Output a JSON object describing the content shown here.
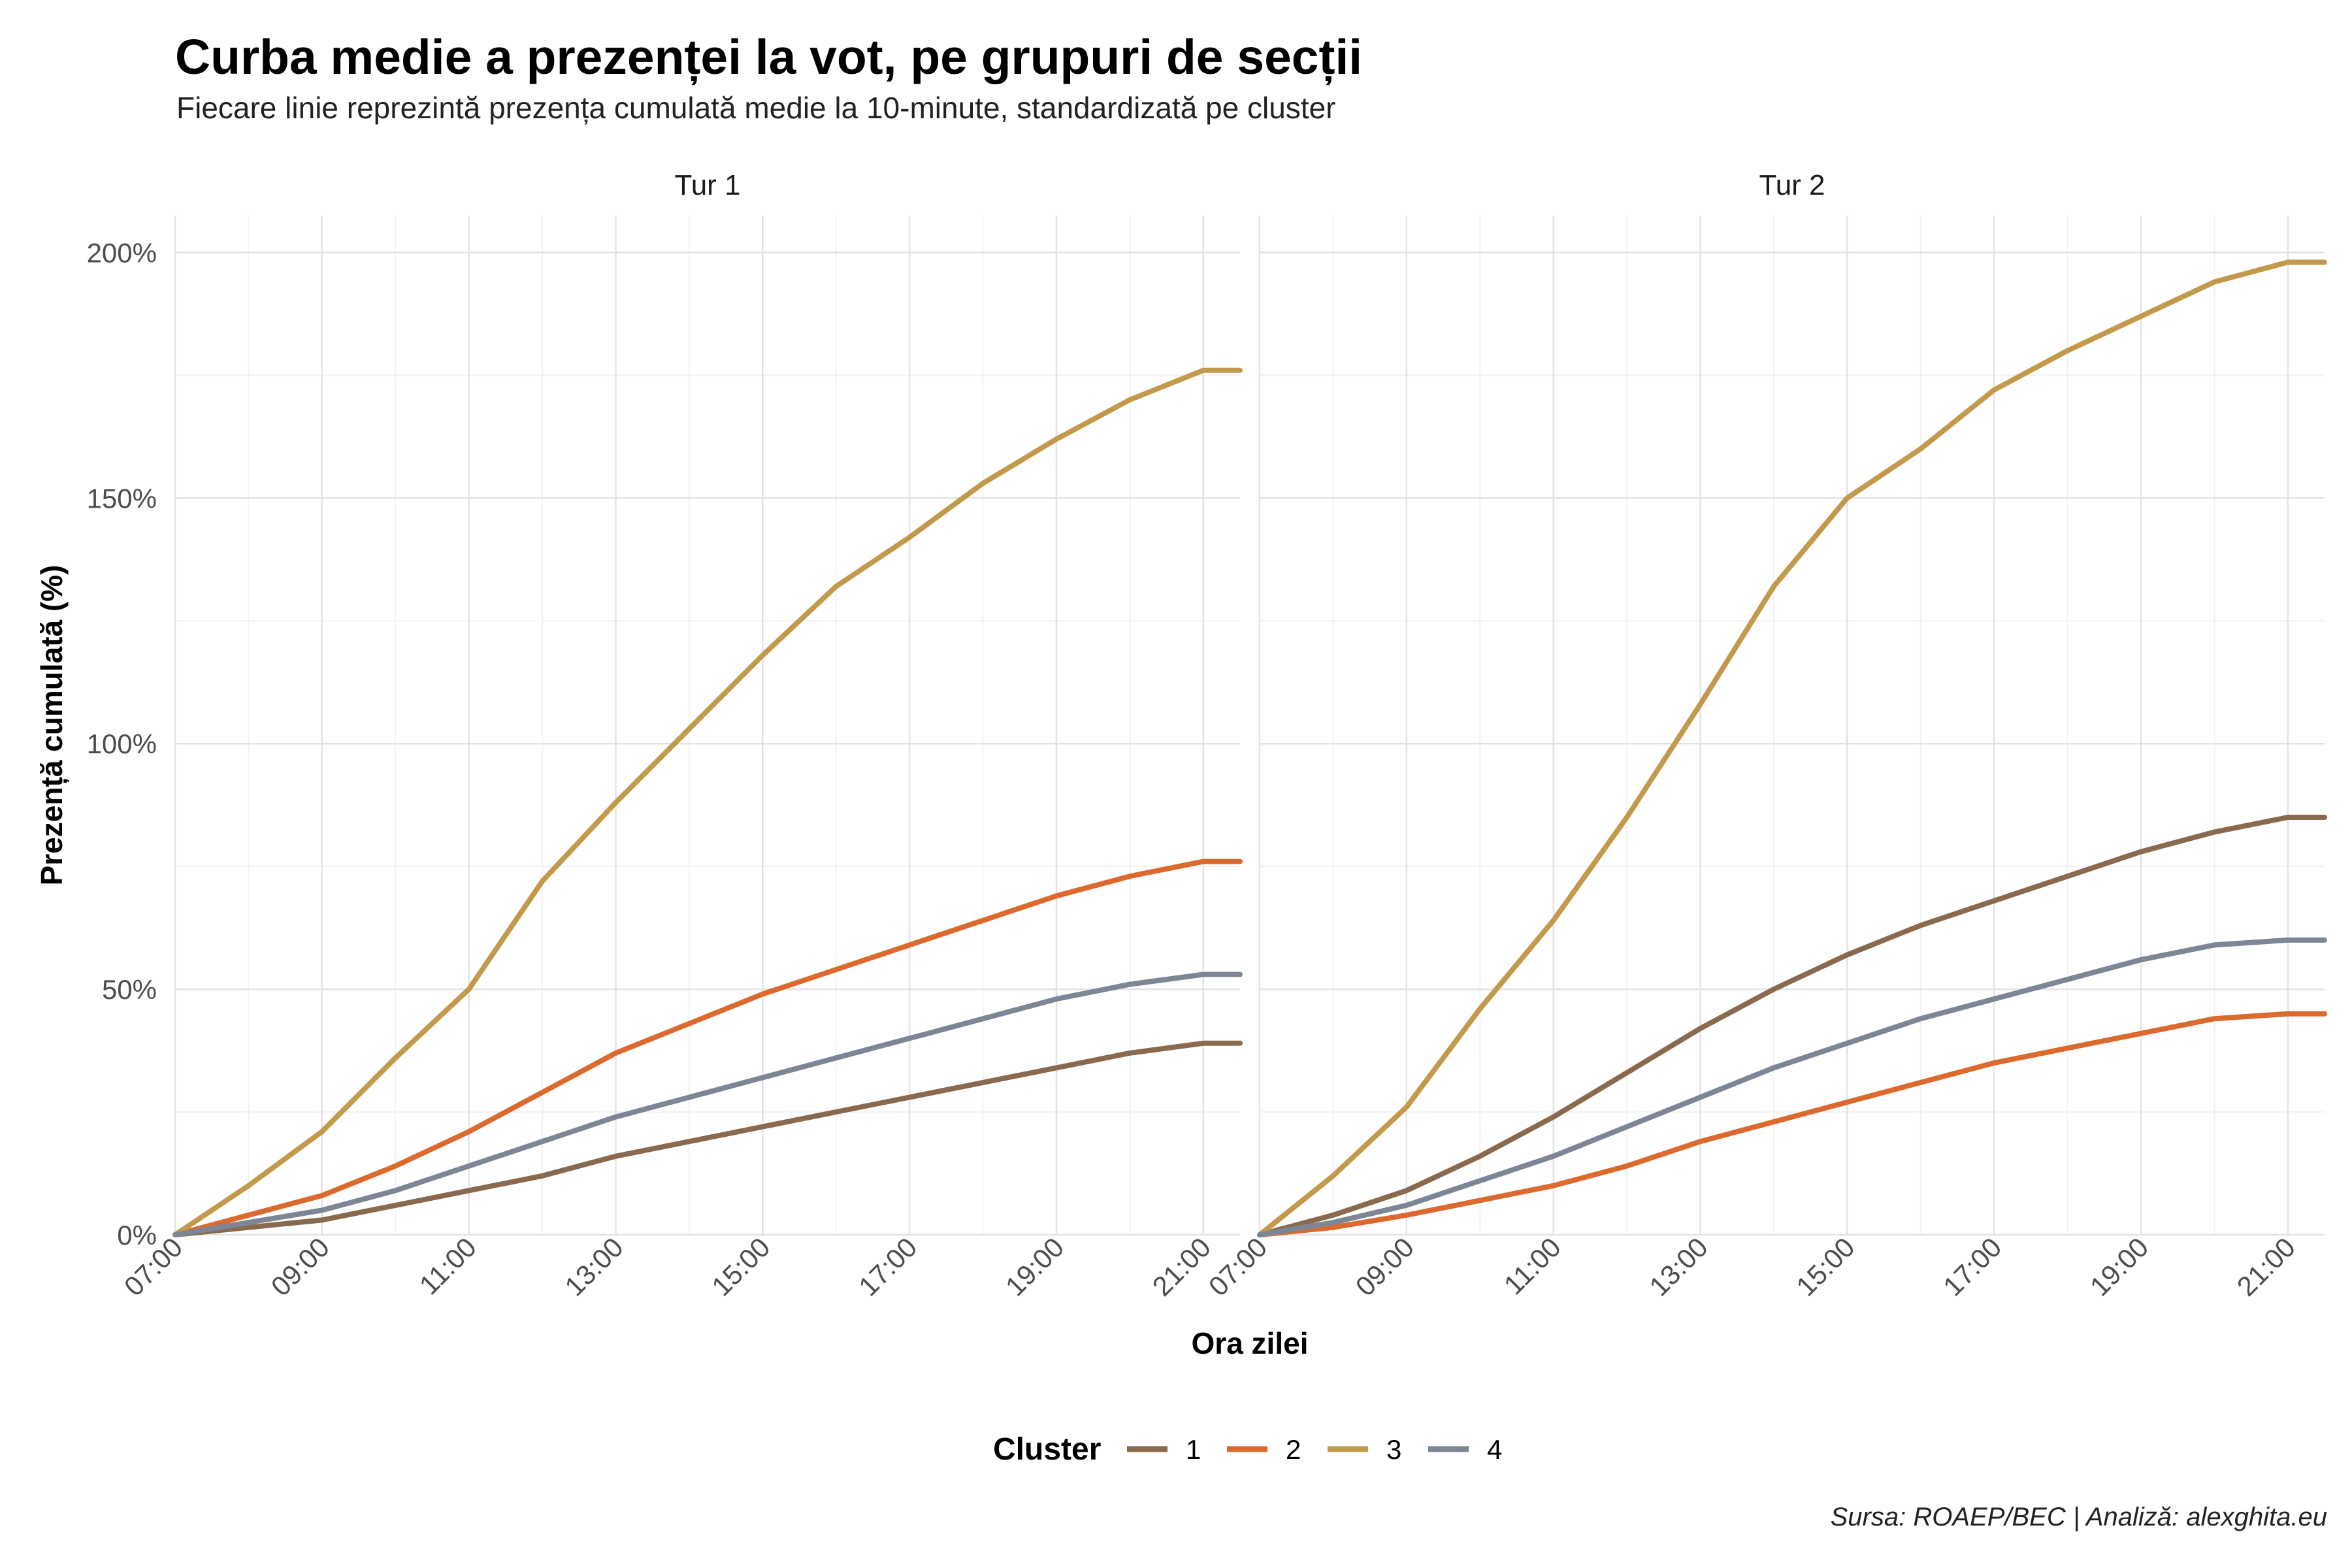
{
  "title": "Curba medie a prezenței la vot, pe grupuri de secții",
  "subtitle": "Fiecare linie reprezintă prezența cumulată medie la 10-minute, standardizată pe cluster",
  "caption": "Sursa: ROAEP/BEC | Analiză: alexghita.eu",
  "colors": {
    "1": "#8a6a4f",
    "2": "#dc6a2e",
    "3": "#c39a4c",
    "4": "#7c8694"
  },
  "chart_data": {
    "type": "line",
    "xlabel": "Ora zilei",
    "ylabel": "Prezență cumulată (%)",
    "xlim": [
      "07:00",
      "21:30"
    ],
    "ylim": [
      0,
      200
    ],
    "x_ticks": [
      "07:00",
      "09:00",
      "11:00",
      "13:00",
      "15:00",
      "17:00",
      "19:00",
      "21:00"
    ],
    "y_ticks": [
      "0%",
      "50%",
      "100%",
      "150%",
      "200%"
    ],
    "y_tick_values": [
      0,
      50,
      100,
      150,
      200
    ],
    "grid": true,
    "legend": {
      "title": "Cluster",
      "position": "bottom",
      "entries": [
        "1",
        "2",
        "3",
        "4"
      ]
    },
    "x": [
      "07:00",
      "08:00",
      "09:00",
      "10:00",
      "11:00",
      "12:00",
      "13:00",
      "14:00",
      "15:00",
      "16:00",
      "17:00",
      "18:00",
      "19:00",
      "20:00",
      "21:00",
      "21:30"
    ],
    "panels": [
      {
        "title": "Tur 1",
        "series": [
          {
            "name": "1",
            "values": [
              0,
              1.5,
              3,
              6,
              9,
              12,
              16,
              19,
              22,
              25,
              28,
              31,
              34,
              37,
              39,
              39
            ]
          },
          {
            "name": "2",
            "values": [
              0,
              4,
              8,
              14,
              21,
              29,
              37,
              43,
              49,
              54,
              59,
              64,
              69,
              73,
              76,
              76
            ]
          },
          {
            "name": "3",
            "values": [
              0,
              10,
              21,
              36,
              50,
              72,
              88,
              103,
              118,
              132,
              142,
              153,
              162,
              170,
              176,
              176
            ]
          },
          {
            "name": "4",
            "values": [
              0,
              2.5,
              5,
              9,
              14,
              19,
              24,
              28,
              32,
              36,
              40,
              44,
              48,
              51,
              53,
              53
            ]
          }
        ]
      },
      {
        "title": "Tur 2",
        "series": [
          {
            "name": "1",
            "values": [
              0,
              4,
              9,
              16,
              24,
              33,
              42,
              50,
              57,
              63,
              68,
              73,
              78,
              82,
              85,
              85
            ]
          },
          {
            "name": "2",
            "values": [
              0,
              1.5,
              4,
              7,
              10,
              14,
              19,
              23,
              27,
              31,
              35,
              38,
              41,
              44,
              45,
              45
            ]
          },
          {
            "name": "3",
            "values": [
              0,
              12,
              26,
              46,
              64,
              85,
              108,
              132,
              150,
              160,
              172,
              180,
              187,
              194,
              198,
              198
            ]
          },
          {
            "name": "4",
            "values": [
              0,
              2.5,
              6,
              11,
              16,
              22,
              28,
              34,
              39,
              44,
              48,
              52,
              56,
              59,
              60,
              60
            ]
          }
        ]
      }
    ]
  }
}
